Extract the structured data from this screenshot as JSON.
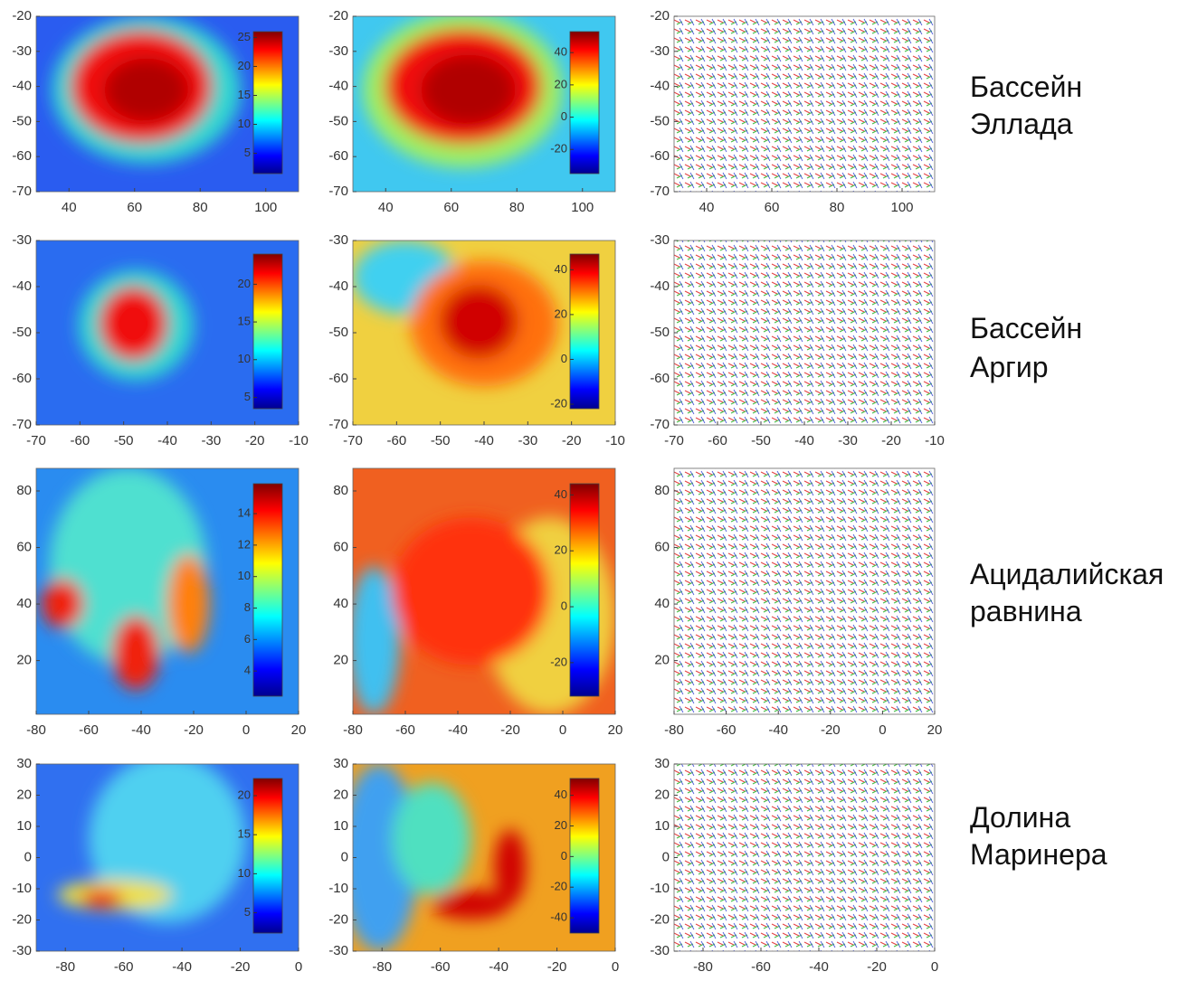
{
  "chart_data": [
    {
      "type": "heatmap",
      "xlim": [
        30,
        110
      ],
      "xticks": [
        40,
        60,
        80,
        100
      ],
      "ylim": [
        -70,
        -20
      ],
      "yticks": [
        -70,
        -60,
        -50,
        -40,
        -30,
        -20
      ],
      "colorbar": {
        "clim": [
          1.5,
          26
        ],
        "ticks": [
          5,
          10,
          15,
          20,
          25
        ]
      }
    },
    {
      "type": "heatmap",
      "xlim": [
        30,
        110
      ],
      "xticks": [
        40,
        60,
        80,
        100
      ],
      "ylim": [
        -70,
        -20
      ],
      "yticks": [
        -70,
        -60,
        -50,
        -40,
        -30,
        -20
      ],
      "colorbar": {
        "clim": [
          -35,
          53
        ],
        "ticks": [
          -20,
          0,
          20,
          40
        ]
      }
    },
    {
      "type": "quiver",
      "xlim": [
        30,
        110
      ],
      "xticks": [
        40,
        60,
        80,
        100
      ],
      "ylim": [
        -70,
        -20
      ],
      "yticks": [
        -70,
        -60,
        -50,
        -40,
        -30,
        -20
      ]
    },
    {
      "type": "heatmap",
      "xlim": [
        -70,
        -10
      ],
      "xticks": [
        -70,
        -60,
        -50,
        -40,
        -30,
        -20,
        -10
      ],
      "ylim": [
        -70,
        -30
      ],
      "yticks": [
        -70,
        -60,
        -50,
        -40,
        -30
      ],
      "colorbar": {
        "clim": [
          3.5,
          24
        ],
        "ticks": [
          5,
          10,
          15,
          20
        ]
      }
    },
    {
      "type": "heatmap",
      "xlim": [
        -70,
        -10
      ],
      "xticks": [
        -70,
        -60,
        -50,
        -40,
        -30,
        -20,
        -10
      ],
      "ylim": [
        -70,
        -30
      ],
      "yticks": [
        -70,
        -60,
        -50,
        -40,
        -30
      ],
      "colorbar": {
        "clim": [
          -22,
          47
        ],
        "ticks": [
          -20,
          0,
          20,
          40
        ]
      }
    },
    {
      "type": "quiver",
      "xlim": [
        -70,
        -10
      ],
      "xticks": [
        -70,
        -60,
        -50,
        -40,
        -30,
        -20,
        -10
      ],
      "ylim": [
        -70,
        -30
      ],
      "yticks": [
        -70,
        -60,
        -50,
        -40,
        -30
      ]
    },
    {
      "type": "heatmap",
      "xlim": [
        -80,
        20
      ],
      "xticks": [
        -80,
        -60,
        -40,
        -20,
        0,
        20
      ],
      "ylim": [
        1,
        88
      ],
      "yticks": [
        20,
        40,
        60,
        80
      ],
      "colorbar": {
        "clim": [
          2.4,
          15.9
        ],
        "ticks": [
          4,
          6,
          8,
          10,
          12,
          14
        ]
      }
    },
    {
      "type": "heatmap",
      "xlim": [
        -80,
        20
      ],
      "xticks": [
        -80,
        -60,
        -40,
        -20,
        0,
        20
      ],
      "ylim": [
        1,
        88
      ],
      "yticks": [
        20,
        40,
        60,
        80
      ],
      "colorbar": {
        "clim": [
          -32,
          44
        ],
        "ticks": [
          -20,
          0,
          20,
          40
        ]
      }
    },
    {
      "type": "quiver",
      "xlim": [
        -80,
        20
      ],
      "xticks": [
        -80,
        -60,
        -40,
        -20,
        0,
        20
      ],
      "ylim": [
        1,
        88
      ],
      "yticks": [
        20,
        40,
        60,
        80
      ]
    },
    {
      "type": "heatmap",
      "xlim": [
        -90,
        0
      ],
      "xticks": [
        -80,
        -60,
        -40,
        -20,
        0
      ],
      "ylim": [
        -30,
        30
      ],
      "yticks": [
        -30,
        -20,
        -10,
        0,
        10,
        20,
        30
      ],
      "colorbar": {
        "clim": [
          2.4,
          22.2
        ],
        "ticks": [
          5,
          10,
          15,
          20
        ]
      }
    },
    {
      "type": "heatmap",
      "xlim": [
        -90,
        0
      ],
      "xticks": [
        -80,
        -60,
        -40,
        -20,
        0
      ],
      "ylim": [
        -30,
        30
      ],
      "yticks": [
        -30,
        -20,
        -10,
        0,
        10,
        20,
        30
      ],
      "colorbar": {
        "clim": [
          -50,
          51
        ],
        "ticks": [
          -40,
          -20,
          0,
          20,
          40
        ]
      }
    },
    {
      "type": "quiver",
      "xlim": [
        -90,
        0
      ],
      "xticks": [
        -80,
        -60,
        -40,
        -20,
        0
      ],
      "ylim": [
        -30,
        30
      ],
      "yticks": [
        -30,
        -20,
        -10,
        0,
        10,
        20,
        30
      ]
    }
  ],
  "row_labels": [
    [
      "Бассейн",
      "Эллада"
    ],
    [
      "Бассейн",
      "Аргир"
    ],
    [
      "Ацидалийская",
      "равнина"
    ],
    [
      "Долина",
      "Маринера"
    ]
  ]
}
